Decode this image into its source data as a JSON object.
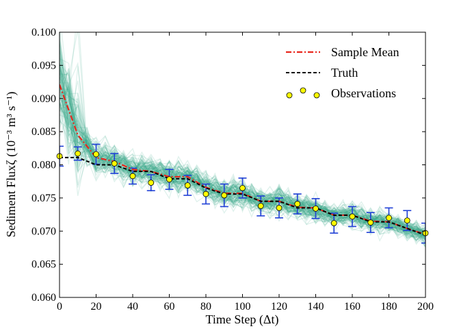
{
  "chart_data": {
    "type": "line",
    "title": "",
    "xlabel": "Time Step (Δt)",
    "ylabel": "Sediment Fluxζ (10⁻³ m³ s⁻¹)",
    "xlim": [
      0,
      200
    ],
    "ylim": [
      0.06,
      0.1
    ],
    "x_ticks": [
      "0",
      "20",
      "40",
      "60",
      "80",
      "100",
      "120",
      "140",
      "160",
      "180",
      "200"
    ],
    "y_ticks": [
      "0.060",
      "0.065",
      "0.070",
      "0.075",
      "0.080",
      "0.085",
      "0.090",
      "0.095",
      "0.100"
    ],
    "grid": false,
    "legend_position": "top-right",
    "series": [
      {
        "name": "Sample Mean",
        "style": "dash-dot",
        "color": "#e8261c",
        "x": [
          0,
          10,
          20,
          30,
          40,
          50,
          60,
          70,
          80,
          90,
          100,
          110,
          120,
          130,
          140,
          150,
          160,
          170,
          180,
          190,
          200
        ],
        "y": [
          0.0921,
          0.0845,
          0.0811,
          0.0805,
          0.0793,
          0.079,
          0.0782,
          0.0782,
          0.0766,
          0.0757,
          0.0757,
          0.0745,
          0.0745,
          0.0736,
          0.0735,
          0.0724,
          0.0724,
          0.0715,
          0.0714,
          0.0704,
          0.0695
        ]
      },
      {
        "name": "Truth",
        "style": "dashed",
        "color": "#000000",
        "x": [
          0,
          10,
          20,
          30,
          40,
          50,
          60,
          70,
          80,
          90,
          100,
          110,
          120,
          130,
          140,
          150,
          160,
          170,
          180,
          190,
          200
        ],
        "y": [
          0.0811,
          0.0811,
          0.08,
          0.08,
          0.079,
          0.079,
          0.0779,
          0.0779,
          0.0765,
          0.0756,
          0.0756,
          0.0745,
          0.0745,
          0.0735,
          0.0735,
          0.0724,
          0.0724,
          0.0714,
          0.0714,
          0.0704,
          0.0694
        ]
      },
      {
        "name": "Observations",
        "style": "markers",
        "color": "#ffff00",
        "errorbar_color": "#1f3fd6",
        "x": [
          0,
          10,
          20,
          30,
          40,
          50,
          60,
          70,
          80,
          90,
          100,
          110,
          120,
          130,
          140,
          150,
          160,
          170,
          180,
          190,
          200
        ],
        "y": [
          0.0813,
          0.0817,
          0.0816,
          0.0802,
          0.0783,
          0.0773,
          0.0778,
          0.0769,
          0.0756,
          0.0754,
          0.0765,
          0.0738,
          0.0735,
          0.0741,
          0.0734,
          0.0712,
          0.0722,
          0.0713,
          0.072,
          0.0716,
          0.0697
        ],
        "error": [
          0.0015,
          0.001,
          0.0015,
          0.0015,
          0.0012,
          0.0012,
          0.0015,
          0.0015,
          0.0015,
          0.0017,
          0.0015,
          0.0015,
          0.0015,
          0.0015,
          0.0015,
          0.0015,
          0.0015,
          0.0015,
          0.0015,
          0.0015,
          0.0015
        ]
      }
    ],
    "ensemble": {
      "color": "#3aa98a",
      "description_visible": false
    }
  }
}
